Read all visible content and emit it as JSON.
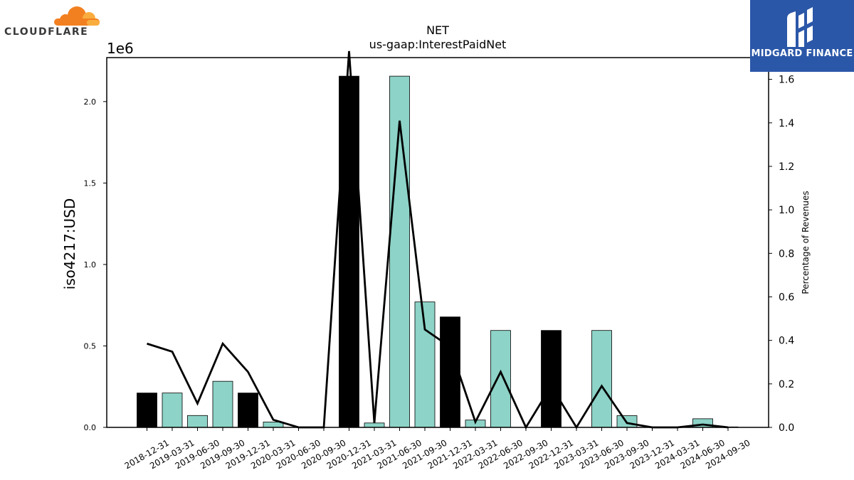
{
  "logos": {
    "left_text": "CLOUDFLARE",
    "right_text": "MIDGARD FINANCE"
  },
  "colors": {
    "bar_teal": "#8dd3c7",
    "bar_black": "#000000",
    "line": "#000000",
    "cloud_orange": "#f38020",
    "cloud_light": "#faad3f",
    "midgard_blue": "#2b57a8"
  },
  "chart_data": {
    "type": "bar",
    "title": "NET",
    "subtitle": "us-gaap:InterestPaidNet",
    "ylabel": "iso4217:USD",
    "y_offset_text": "1e6",
    "y2label": "Percentage of Revenues",
    "ylim": [
      0,
      2.27
    ],
    "y2lim": [
      0,
      1.7
    ],
    "yticks": [
      "0.0",
      "0.5",
      "1.0",
      "1.5",
      "2.0"
    ],
    "y2ticks": [
      "0.0",
      "0.2",
      "0.4",
      "0.6",
      "0.8",
      "1.0",
      "1.2",
      "1.4",
      "1.6"
    ],
    "categories": [
      "2018-12-31",
      "2019-03-31",
      "2019-06-30",
      "2019-09-30",
      "2019-12-31",
      "2020-03-31",
      "2020-06-30",
      "2020-09-30",
      "2020-12-31",
      "2021-03-31",
      "2021-06-30",
      "2021-09-30",
      "2021-12-31",
      "2022-03-31",
      "2022-06-30",
      "2022-09-30",
      "2022-12-31",
      "2023-03-31",
      "2023-06-30",
      "2023-09-30",
      "2023-12-31",
      "2024-03-31",
      "2024-06-30",
      "2024-09-30"
    ],
    "series": [
      {
        "values": [
          0.211,
          0.211,
          0.073,
          0.283,
          0.211,
          0.033,
          0.0,
          0.0,
          2.156,
          0.027,
          2.156,
          0.77,
          0.678,
          0.045,
          0.595,
          0.0,
          0.595,
          0.0,
          0.595,
          0.072,
          0.0,
          0.0,
          0.053,
          0.003
        ],
        "bar_colors": [
          "black",
          "teal",
          "teal",
          "teal",
          "black",
          "teal",
          "teal",
          "teal",
          "black",
          "teal",
          "teal",
          "teal",
          "black",
          "teal",
          "teal",
          "teal",
          "black",
          "teal",
          "teal",
          "teal",
          "black",
          "teal",
          "teal",
          "teal"
        ]
      },
      {
        "type": "line",
        "axis": "right",
        "values": [
          0.385,
          0.348,
          0.11,
          0.385,
          0.255,
          0.035,
          0.0,
          0.0,
          1.73,
          0.02,
          1.41,
          0.45,
          0.37,
          0.025,
          0.255,
          0.0,
          0.19,
          0.0,
          0.19,
          0.02,
          0.0,
          0.0,
          0.013,
          0.0
        ]
      }
    ],
    "grid": false
  }
}
